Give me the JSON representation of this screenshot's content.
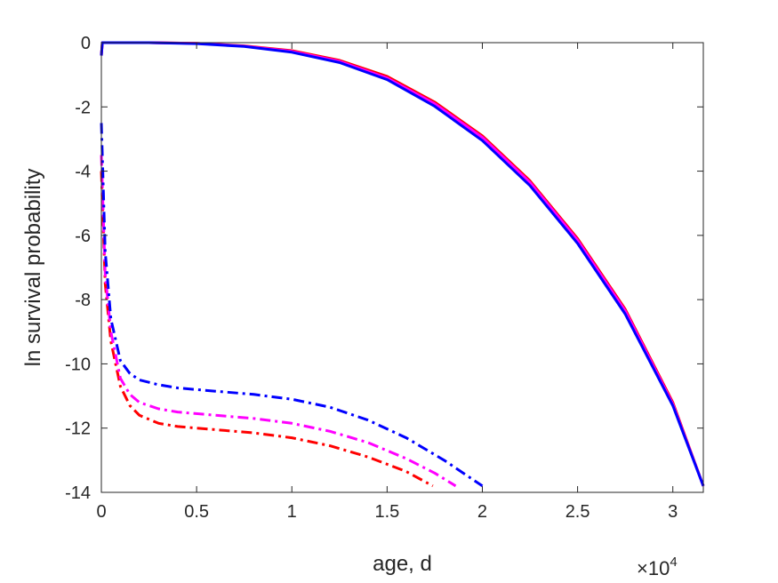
{
  "chart_data": {
    "type": "line",
    "title": "",
    "xlabel": "age, d",
    "ylabel": "ln survival probability",
    "x_multiplier": {
      "base": "×10",
      "exponent": "4"
    },
    "xlim": [
      0,
      31600
    ],
    "ylim": [
      -14,
      0
    ],
    "x_ticks": [
      0,
      5000,
      10000,
      15000,
      20000,
      25000,
      30000
    ],
    "x_tick_labels": [
      "0",
      "0.5",
      "1",
      "1.5",
      "2",
      "2.5",
      "3"
    ],
    "y_ticks": [
      0,
      -2,
      -4,
      -6,
      -8,
      -10,
      -12,
      -14
    ],
    "y_tick_labels": [
      "0",
      "-2",
      "-4",
      "-6",
      "-8",
      "-10",
      "-12",
      "-14"
    ],
    "grid": false,
    "legend": "none",
    "series": [
      {
        "color": "#ff0000",
        "style": "solid",
        "x": [
          0,
          50,
          2500,
          5000,
          7500,
          10000,
          12500,
          15000,
          17500,
          20000,
          22500,
          25000,
          27500,
          30000,
          31600
        ],
        "y": [
          -0.4,
          0,
          0,
          -0.02,
          -0.1,
          -0.25,
          -0.55,
          -1.05,
          -1.85,
          -2.9,
          -4.3,
          -6.1,
          -8.3,
          -11.2,
          -13.8
        ]
      },
      {
        "color": "#ff00ff",
        "style": "solid",
        "x": [
          0,
          50,
          2500,
          5000,
          7500,
          10000,
          12500,
          15000,
          17500,
          20000,
          22500,
          25000,
          27500,
          30000,
          31600
        ],
        "y": [
          -0.4,
          0,
          0,
          -0.02,
          -0.11,
          -0.27,
          -0.58,
          -1.1,
          -1.9,
          -2.95,
          -4.35,
          -6.15,
          -8.35,
          -11.25,
          -13.8
        ]
      },
      {
        "color": "#0000ff",
        "style": "solid",
        "x": [
          0,
          50,
          2500,
          5000,
          7500,
          10000,
          12500,
          15000,
          17500,
          20000,
          22500,
          25000,
          27500,
          30000,
          31600
        ],
        "y": [
          -0.4,
          0,
          0,
          -0.03,
          -0.12,
          -0.3,
          -0.62,
          -1.15,
          -1.98,
          -3.05,
          -4.45,
          -6.25,
          -8.45,
          -11.3,
          -13.8
        ]
      },
      {
        "color": "#ff0000",
        "style": "dashdot",
        "x": [
          0,
          200,
          500,
          1000,
          1500,
          2000,
          3000,
          4000,
          6000,
          8000,
          10000,
          12000,
          14000,
          16000,
          17400
        ],
        "y": [
          -4,
          -7.5,
          -9.3,
          -10.7,
          -11.3,
          -11.6,
          -11.85,
          -11.95,
          -12.05,
          -12.15,
          -12.3,
          -12.55,
          -12.9,
          -13.35,
          -13.8
        ]
      },
      {
        "color": "#ff00ff",
        "style": "dashdot",
        "x": [
          0,
          200,
          500,
          1000,
          1500,
          2000,
          3000,
          4000,
          6000,
          8000,
          10000,
          12000,
          14000,
          16000,
          17500,
          18600
        ],
        "y": [
          -3.5,
          -7.2,
          -9.0,
          -10.45,
          -10.95,
          -11.2,
          -11.4,
          -11.5,
          -11.6,
          -11.7,
          -11.85,
          -12.1,
          -12.45,
          -12.95,
          -13.4,
          -13.8
        ]
      },
      {
        "color": "#0000ff",
        "style": "dashdot",
        "x": [
          0,
          200,
          500,
          1000,
          1500,
          2000,
          3000,
          4000,
          6000,
          8000,
          10000,
          12000,
          14000,
          16000,
          18000,
          20000
        ],
        "y": [
          -2.5,
          -6.5,
          -8.6,
          -9.9,
          -10.3,
          -10.5,
          -10.65,
          -10.75,
          -10.85,
          -10.95,
          -11.1,
          -11.35,
          -11.75,
          -12.3,
          -13.0,
          -13.8
        ]
      }
    ]
  }
}
